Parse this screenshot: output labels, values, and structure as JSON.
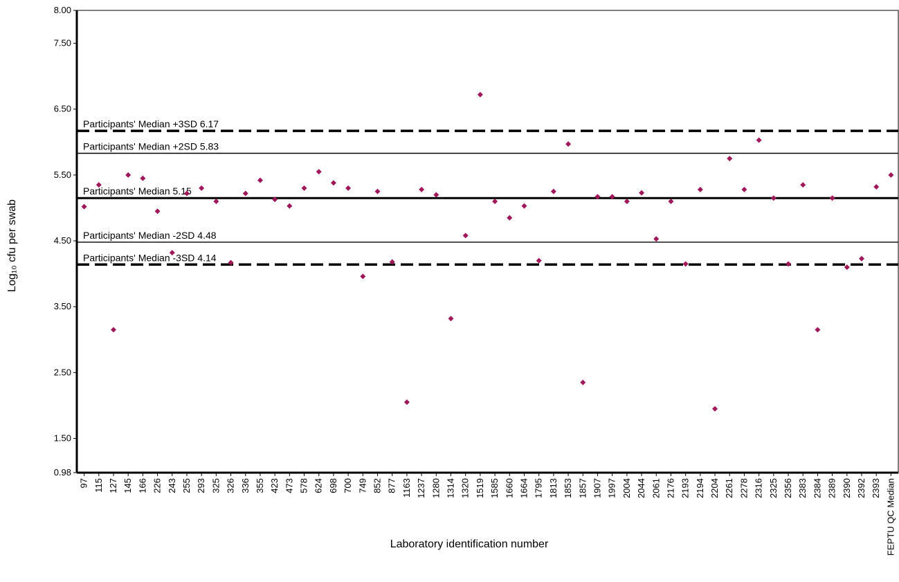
{
  "chart_data": {
    "type": "scatter",
    "xlabel": "Laboratory identification number",
    "ylabel": "Log₁₀ cfu per swab",
    "ylim": [
      0.98,
      8.0
    ],
    "y_ticks": [
      "0.98",
      "1.50",
      "2.50",
      "3.50",
      "4.50",
      "5.50",
      "6.50",
      "7.50",
      "8.00"
    ],
    "y_tick_values": [
      0.98,
      1.5,
      2.5,
      3.5,
      4.5,
      5.5,
      6.5,
      7.5,
      8.0
    ],
    "grid": false,
    "marker_color": "#a0185a",
    "categories": [
      "97",
      "115",
      "127",
      "145",
      "166",
      "226",
      "243",
      "255",
      "293",
      "325",
      "326",
      "336",
      "355",
      "423",
      "473",
      "578",
      "624",
      "698",
      "700",
      "749",
      "852",
      "877",
      "1163",
      "1237",
      "1280",
      "1314",
      "1320",
      "1519",
      "1585",
      "1660",
      "1664",
      "1795",
      "1813",
      "1853",
      "1857",
      "1907",
      "1997",
      "2004",
      "2044",
      "2061",
      "2176",
      "2193",
      "2194",
      "2204",
      "2261",
      "2278",
      "2316",
      "2325",
      "2356",
      "2383",
      "2384",
      "2389",
      "2390",
      "2392",
      "2393",
      "FEPTU QC Median"
    ],
    "x_tick_labels": [
      "97",
      "115",
      "127",
      "145",
      "166",
      "226",
      "243",
      "255",
      "293",
      "325",
      "326",
      "336",
      "355",
      "423",
      "473",
      "578",
      "624",
      "698",
      "700",
      "749",
      "852",
      "877",
      "1163",
      "1237",
      "1280",
      "1314",
      "1320",
      "1519",
      "1585",
      "1660",
      "1664",
      "1795",
      "1813",
      "1853",
      "1857",
      "1907",
      "1997",
      "2004",
      "2044",
      "2061",
      "2176",
      "2193",
      "2194",
      "2204",
      "2261",
      "2278",
      "2316",
      "2325",
      "2356",
      "2383",
      "2384",
      "2389",
      "2390",
      "2392",
      "2393",
      "FEPTU QC Median"
    ],
    "values": [
      5.02,
      5.35,
      3.15,
      5.5,
      5.45,
      4.95,
      4.32,
      5.22,
      5.3,
      5.1,
      4.17,
      5.22,
      5.42,
      5.13,
      5.03,
      5.3,
      5.55,
      5.38,
      5.3,
      3.96,
      5.25,
      4.18,
      2.05,
      5.28,
      5.2,
      3.32,
      4.58,
      6.72,
      5.1,
      4.85,
      5.03,
      4.2,
      5.25,
      5.97,
      2.35,
      5.17,
      5.17,
      5.1,
      5.23,
      4.53,
      5.1,
      4.15,
      5.28,
      1.95,
      5.75,
      5.28,
      6.03,
      5.15,
      4.15,
      5.35,
      3.15,
      5.15,
      4.1,
      4.23,
      5.32,
      5.5
    ],
    "reference_lines": [
      {
        "label": "Participants' Median +3SD 6.17",
        "value": 6.17,
        "style": "dashed"
      },
      {
        "label": "Participants' Median +2SD 5.83",
        "value": 5.83,
        "style": "solid-thin"
      },
      {
        "label": "Participants' Median 5.15",
        "value": 5.15,
        "style": "solid-thick"
      },
      {
        "label": "Participants' Median -2SD 4.48",
        "value": 4.48,
        "style": "solid-thin"
      },
      {
        "label": "Participants' Median -3SD 4.14",
        "value": 4.14,
        "style": "dashed"
      }
    ]
  }
}
